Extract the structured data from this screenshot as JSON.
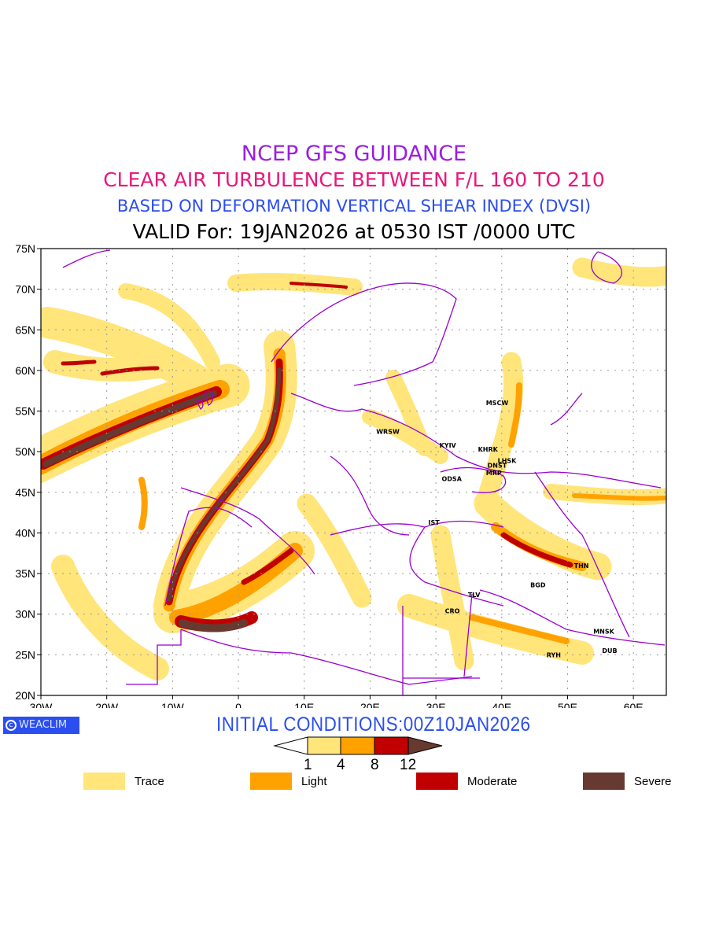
{
  "titles": {
    "line1": "NCEP GFS GUIDANCE",
    "line2": "CLEAR AIR TURBULENCE BETWEEN F/L 160 TO 210",
    "line3": "BASED ON DEFORMATION VERTICAL SHEAR INDEX (DVSI)",
    "line4": "VALID For: 19JAN2026 at 0530 IST /0000 UTC"
  },
  "map": {
    "lon_range": [
      -30,
      65
    ],
    "lat_range": [
      20,
      75
    ],
    "x_ticks": [
      "30W",
      "20W",
      "10W",
      "0",
      "10E",
      "20E",
      "30E",
      "40E",
      "50E",
      "60E"
    ],
    "y_ticks": [
      "20N",
      "25N",
      "30N",
      "35N",
      "40N",
      "45N",
      "50N",
      "55N",
      "60N",
      "65N",
      "70N",
      "75N"
    ],
    "cities": [
      {
        "name": "MSCW",
        "lon": 39.3,
        "lat": 56.0
      },
      {
        "name": "WRSW",
        "lon": 22.7,
        "lat": 52.5
      },
      {
        "name": "KYIV",
        "lon": 31.8,
        "lat": 50.8
      },
      {
        "name": "KHRK",
        "lon": 37.9,
        "lat": 50.3
      },
      {
        "name": "LHSK",
        "lon": 40.8,
        "lat": 48.9
      },
      {
        "name": "DNST",
        "lon": 39.3,
        "lat": 48.3
      },
      {
        "name": "MRP",
        "lon": 38.8,
        "lat": 47.4
      },
      {
        "name": "ODSA",
        "lon": 32.4,
        "lat": 46.7
      },
      {
        "name": "IST",
        "lon": 29.7,
        "lat": 41.3
      },
      {
        "name": "THN",
        "lon": 52.1,
        "lat": 36.0
      },
      {
        "name": "BGD",
        "lon": 45.5,
        "lat": 33.6
      },
      {
        "name": "TLV",
        "lon": 35.8,
        "lat": 32.4
      },
      {
        "name": "CRO",
        "lon": 32.5,
        "lat": 30.4
      },
      {
        "name": "MNSK",
        "lon": 55.5,
        "lat": 27.9
      },
      {
        "name": "RYH",
        "lon": 47.9,
        "lat": 25.0
      },
      {
        "name": "DUB",
        "lon": 56.4,
        "lat": 25.5
      }
    ]
  },
  "logo": "WEACLIM",
  "initial_conditions": "INITIAL CONDITIONS:00Z10JAN2026",
  "colorbar": {
    "labels": [
      "1",
      "4",
      "8",
      "12"
    ]
  },
  "legend": [
    {
      "label": "Trace",
      "color": "#ffe57a"
    },
    {
      "label": "Light",
      "color": "#ffa200"
    },
    {
      "label": "Moderate",
      "color": "#c00000"
    },
    {
      "label": "Severe",
      "color": "#663a30"
    }
  ],
  "colors": {
    "border": "#9a00d0",
    "grid": "#999999"
  }
}
